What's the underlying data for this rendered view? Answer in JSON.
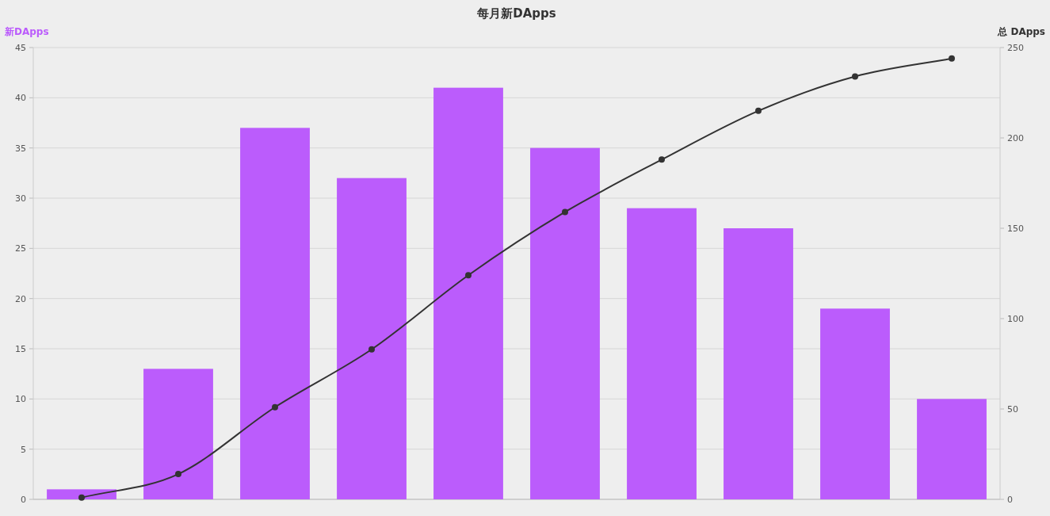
{
  "chart_data": {
    "type": "bar",
    "title": "每月新DApps",
    "ylabel": "新DApps",
    "y2label": "总 DApps",
    "categories": [
      null,
      null,
      null,
      null,
      null,
      null,
      null,
      null,
      null,
      null
    ],
    "series": [
      {
        "color": "#bb5cfc",
        "values": [
          1,
          13,
          37,
          32,
          41,
          35,
          29,
          27,
          19,
          10
        ]
      },
      {
        "type": "line",
        "axis": "y2",
        "color": "#333333",
        "marker": "circle",
        "values": [
          1,
          14,
          51,
          83,
          124,
          159,
          188,
          215,
          234,
          244
        ]
      }
    ],
    "ylim": [
      0,
      45
    ],
    "yticks": [
      0,
      5,
      10,
      15,
      20,
      25,
      30,
      35,
      40,
      45
    ],
    "y2lim": [
      0,
      250
    ],
    "y2ticks": [
      0,
      50,
      100,
      150,
      200,
      250
    ],
    "grid": "y"
  }
}
